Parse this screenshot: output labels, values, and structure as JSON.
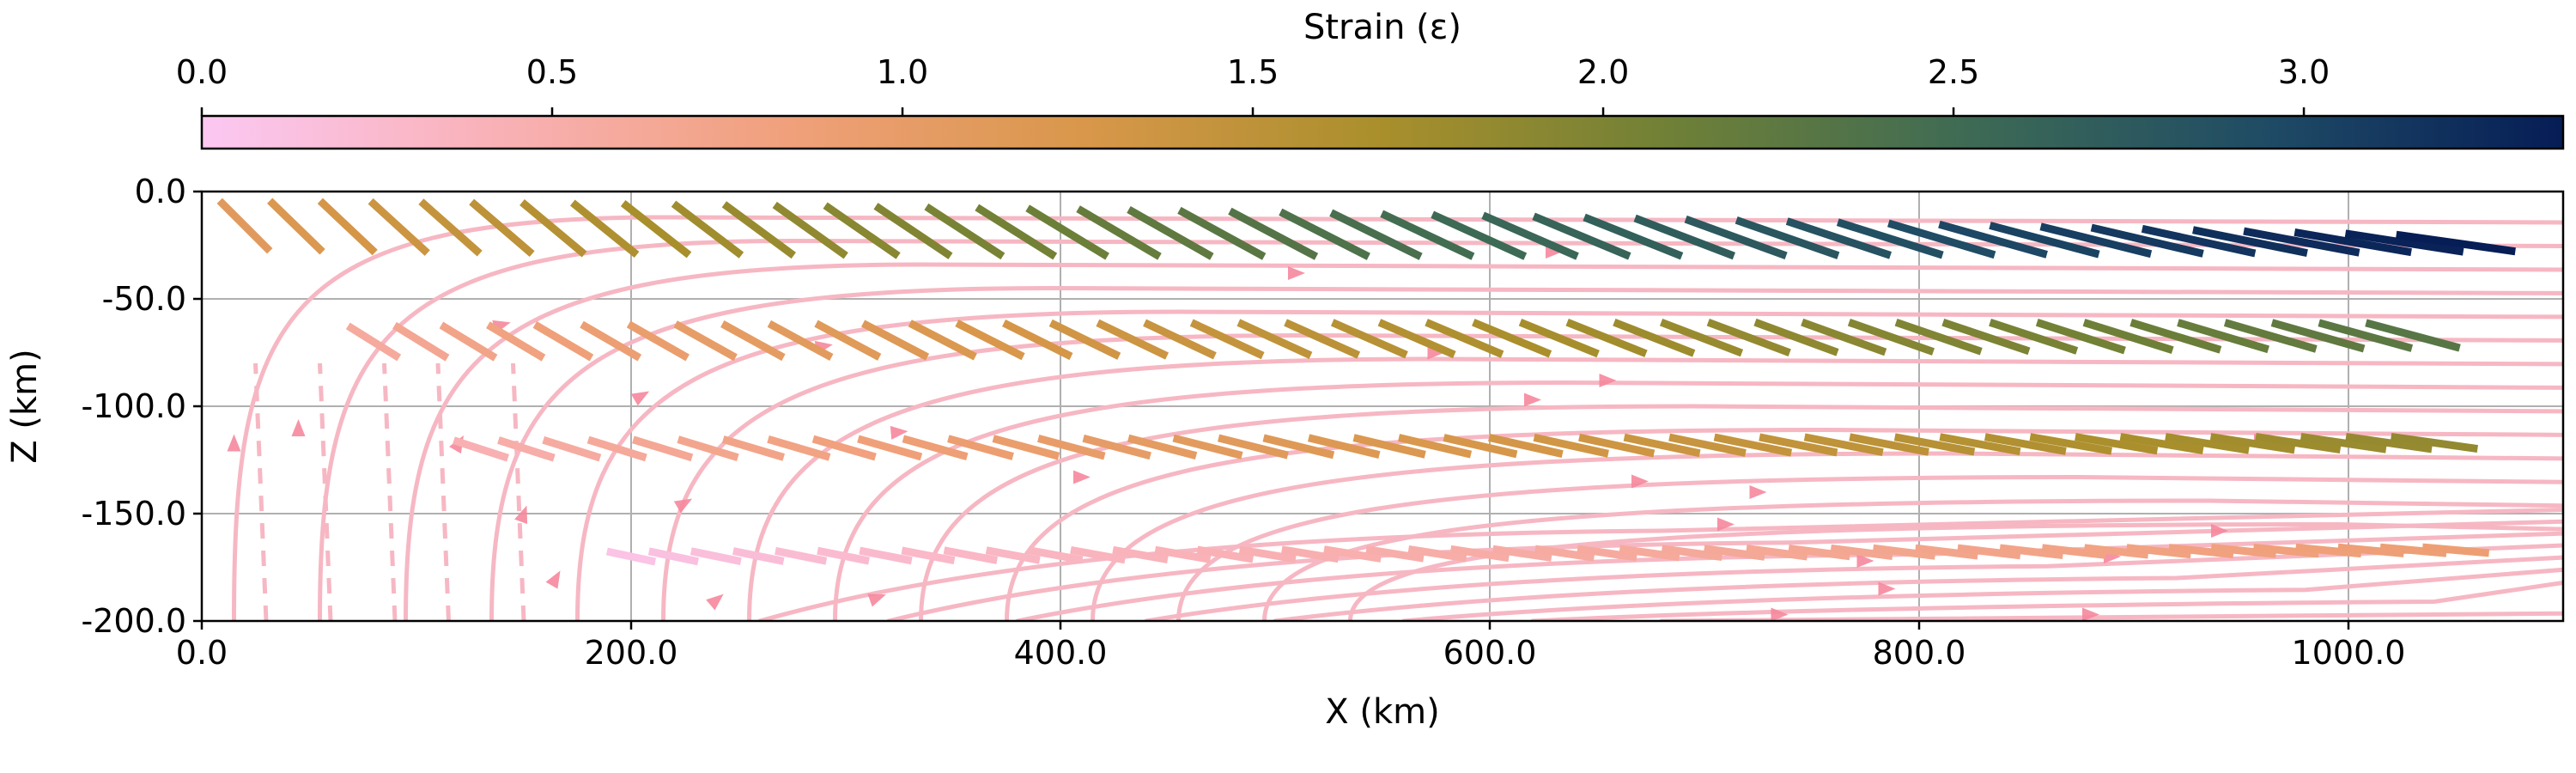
{
  "chart_data": {
    "type": "streamplot-quiver",
    "xlabel": "X (km)",
    "ylabel": "Z (km)",
    "xlim": [
      0,
      1100
    ],
    "ylim": [
      -200,
      0
    ],
    "x_ticks": [
      {
        "value": 0,
        "label": "0.0"
      },
      {
        "value": 200,
        "label": "200.0"
      },
      {
        "value": 400,
        "label": "400.0"
      },
      {
        "value": 600,
        "label": "600.0"
      },
      {
        "value": 800,
        "label": "800.0"
      },
      {
        "value": 1000,
        "label": "1000.0"
      }
    ],
    "y_ticks": [
      {
        "value": 0,
        "label": "0.0"
      },
      {
        "value": -50,
        "label": "-50.0"
      },
      {
        "value": -100,
        "label": "-100.0"
      },
      {
        "value": -150,
        "label": "-150.0"
      },
      {
        "value": -200,
        "label": "-200.0"
      }
    ],
    "grid": true,
    "colorbar": {
      "label": "Strain (ε)",
      "placement": "top",
      "range": [
        0,
        3.37
      ],
      "colormap_stops": [
        "#fbc8f3",
        "#f9b1b6",
        "#f0a07a",
        "#d8974a",
        "#a98f2c",
        "#6e8037",
        "#3d6a55",
        "#1f4b65",
        "#061d56"
      ],
      "ticks": [
        {
          "value": 0.0,
          "label": "0.0"
        },
        {
          "value": 0.5,
          "label": "0.5"
        },
        {
          "value": 1.0,
          "label": "1.0"
        },
        {
          "value": 1.5,
          "label": "1.5"
        },
        {
          "value": 2.0,
          "label": "2.0"
        },
        {
          "value": 2.5,
          "label": "2.5"
        },
        {
          "value": 3.0,
          "label": "3.0"
        }
      ]
    },
    "streamline_color": "#f6b7c3",
    "streamline_arrow_color": "#f6879c",
    "strain_rows": [
      {
        "depth": -20,
        "x_start": 20,
        "x_end": 1050,
        "strain_start": 1.1,
        "strain_end": 3.37,
        "tilt_start": 45,
        "tilt_end": 8
      },
      {
        "depth": -70,
        "x_start": 80,
        "x_end": 1030,
        "strain_start": 0.6,
        "strain_end": 2.3,
        "tilt_start": 32,
        "tilt_end": 15
      },
      {
        "depth": -120,
        "x_start": 130,
        "x_end": 1040,
        "strain_start": 0.45,
        "strain_end": 1.85,
        "tilt_start": 18,
        "tilt_end": 8
      },
      {
        "depth": -170,
        "x_start": 200,
        "x_end": 1050,
        "strain_start": 0.1,
        "strain_end": 0.9,
        "tilt_start": 12,
        "tilt_end": 5
      }
    ]
  }
}
